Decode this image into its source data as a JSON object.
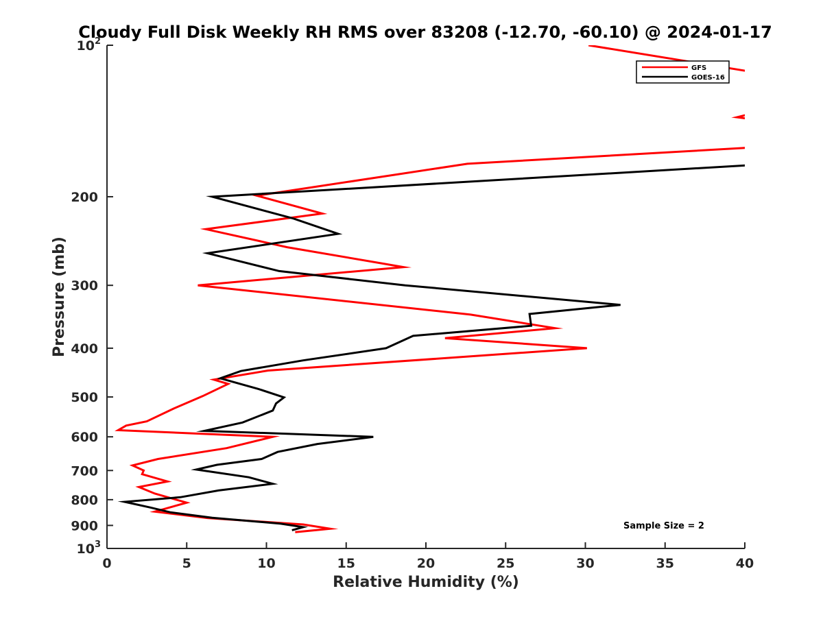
{
  "chart_data": {
    "type": "line",
    "title": "Cloudy Full Disk Weekly RH RMS over 83208 (-12.70, -60.10) @ 2024-01-17",
    "xlabel": "Relative Humidity (%)",
    "ylabel": "Pressure (mb)",
    "xlim": [
      0,
      40
    ],
    "ylim": [
      100,
      1000
    ],
    "yscale": "log",
    "y_reversed": true,
    "grid": false,
    "legend_position": "top-right",
    "x_ticks": [
      0,
      5,
      10,
      15,
      20,
      25,
      30,
      35,
      40
    ],
    "x_tick_labels": [
      "0",
      "5",
      "10",
      "15",
      "20",
      "25",
      "30",
      "35",
      "40"
    ],
    "y_ticks": [
      100,
      200,
      300,
      400,
      500,
      600,
      700,
      800,
      900,
      1000
    ],
    "y_tick_labels": [
      {
        "base": "10",
        "sup": "2"
      },
      {
        "base": "200",
        "sup": ""
      },
      {
        "base": "300",
        "sup": ""
      },
      {
        "base": "400",
        "sup": ""
      },
      {
        "base": "500",
        "sup": ""
      },
      {
        "base": "600",
        "sup": ""
      },
      {
        "base": "700",
        "sup": ""
      },
      {
        "base": "800",
        "sup": ""
      },
      {
        "base": "900",
        "sup": ""
      },
      {
        "base": "10",
        "sup": "3"
      }
    ],
    "series": [
      {
        "name": "GFS",
        "color": "#ff0000",
        "points": [
          [
            30.2,
            100
          ],
          [
            40.5,
            113
          ],
          [
            40.3,
            137
          ],
          [
            39.5,
            139
          ],
          [
            41.0,
            141
          ],
          [
            44.0,
            158
          ],
          [
            40.0,
            160
          ],
          [
            22.6,
            172
          ],
          [
            9.4,
            199
          ],
          [
            13.5,
            216
          ],
          [
            6.2,
            232
          ],
          [
            11.3,
            252
          ],
          [
            18.6,
            276
          ],
          [
            5.7,
            300
          ],
          [
            22.8,
            343
          ],
          [
            28.1,
            365
          ],
          [
            21.2,
            382
          ],
          [
            30.1,
            400
          ],
          [
            10.1,
            443
          ],
          [
            6.7,
            462
          ],
          [
            7.6,
            471
          ],
          [
            6.0,
            498
          ],
          [
            4.2,
            527
          ],
          [
            2.5,
            559
          ],
          [
            1.2,
            570
          ],
          [
            0.7,
            582
          ],
          [
            10.4,
            600
          ],
          [
            7.5,
            632
          ],
          [
            3.2,
            664
          ],
          [
            1.6,
            684
          ],
          [
            2.3,
            700
          ],
          [
            2.2,
            712
          ],
          [
            3.8,
            736
          ],
          [
            2.0,
            755
          ],
          [
            3.0,
            778
          ],
          [
            5.0,
            811
          ],
          [
            3.0,
            845
          ],
          [
            6.3,
            870
          ],
          [
            12.3,
            896
          ],
          [
            14.0,
            914
          ],
          [
            11.8,
            928
          ]
        ]
      },
      {
        "name": "GOES-16",
        "color": "#000000",
        "points": [
          [
            40.5,
            173
          ],
          [
            6.6,
            200
          ],
          [
            11.7,
            221
          ],
          [
            14.5,
            237
          ],
          [
            6.3,
            259
          ],
          [
            10.8,
            281
          ],
          [
            18.7,
            300
          ],
          [
            32.2,
            328
          ],
          [
            26.5,
            342
          ],
          [
            26.6,
            361
          ],
          [
            19.2,
            378
          ],
          [
            17.5,
            400
          ],
          [
            12.3,
            423
          ],
          [
            8.4,
            444
          ],
          [
            7.1,
            459
          ],
          [
            9.5,
            482
          ],
          [
            11.1,
            501
          ],
          [
            10.6,
            515
          ],
          [
            10.4,
            532
          ],
          [
            8.5,
            562
          ],
          [
            6.1,
            584
          ],
          [
            16.7,
            600
          ],
          [
            13.2,
            620
          ],
          [
            10.7,
            643
          ],
          [
            9.7,
            664
          ],
          [
            6.9,
            682
          ],
          [
            5.6,
            697
          ],
          [
            8.9,
            722
          ],
          [
            10.4,
            744
          ],
          [
            7.0,
            767
          ],
          [
            4.6,
            791
          ],
          [
            1.1,
            808
          ],
          [
            2.7,
            829
          ],
          [
            4.0,
            848
          ],
          [
            6.6,
            869
          ],
          [
            10.9,
            893
          ],
          [
            12.3,
            907
          ],
          [
            11.6,
            920
          ]
        ]
      }
    ],
    "annotations": [
      "Sample Size = 2"
    ]
  }
}
